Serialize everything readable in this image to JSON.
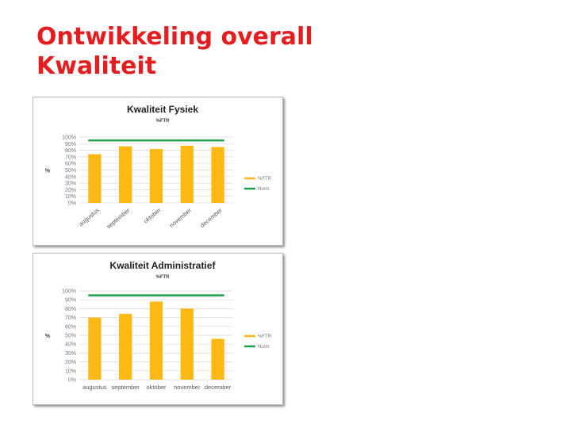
{
  "slide": {
    "title_line1": "Ontwikkeling overall",
    "title_line2": "Kwaliteit"
  },
  "colors": {
    "title": "#e41e1e",
    "bar": "#fdb813",
    "norm": "#1fa04a",
    "grid": "#d9d9d9"
  },
  "chart_data": [
    {
      "type": "bar",
      "title": "Kwaliteit Fysiek",
      "subtitle": "%FTR",
      "ylabel": "%",
      "categories": [
        "augustus",
        "september",
        "oktober",
        "november",
        "december"
      ],
      "yticks": [
        "0%",
        "10%",
        "20%",
        "30%",
        "40%",
        "50%",
        "60%",
        "70%",
        "80%",
        "90%",
        "100%"
      ],
      "ylim": [
        0,
        100
      ],
      "grid": true,
      "category_label_rotation": "diagonal",
      "legend_position": "right",
      "series": [
        {
          "name": "%FTR",
          "kind": "bar",
          "values": [
            74,
            86,
            82,
            87,
            85
          ]
        },
        {
          "name": "Norm",
          "kind": "line",
          "values": [
            95,
            95,
            95,
            95,
            95
          ]
        }
      ]
    },
    {
      "type": "bar",
      "title": "Kwaliteit Administratief",
      "subtitle": "%FTR",
      "ylabel": "%",
      "categories": [
        "augustus",
        "september",
        "oktober",
        "november",
        "december"
      ],
      "yticks": [
        "0%",
        "10%",
        "20%",
        "30%",
        "40%",
        "50%",
        "60%",
        "70%",
        "80%",
        "90%",
        "100%"
      ],
      "ylim": [
        0,
        100
      ],
      "grid": true,
      "category_label_rotation": "horizontal",
      "legend_position": "right",
      "series": [
        {
          "name": "%FTR",
          "kind": "bar",
          "values": [
            70,
            74,
            88,
            80,
            46
          ]
        },
        {
          "name": "Norm",
          "kind": "line",
          "values": [
            95,
            95,
            95,
            95,
            95
          ]
        }
      ]
    }
  ]
}
